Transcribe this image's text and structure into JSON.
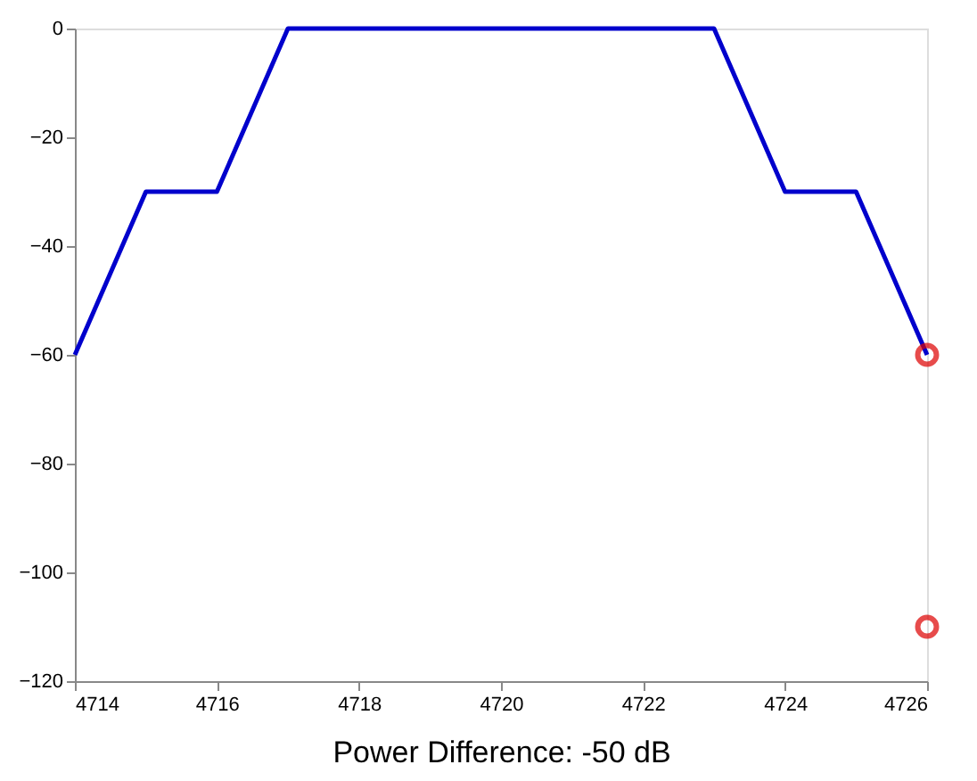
{
  "chart_data": {
    "type": "line",
    "xlabel": "Power Difference: -50 dB",
    "xlim": [
      4714,
      4726
    ],
    "xticks": [
      4714,
      4716,
      4718,
      4720,
      4722,
      4724,
      4726
    ],
    "ylim": [
      -120,
      0
    ],
    "yticks": [
      -120,
      -100,
      -80,
      -60,
      -40,
      -20,
      0
    ],
    "grid": false,
    "series": [
      {
        "type": "line",
        "color": "#0000cc",
        "marker": "none",
        "line_style": "solid",
        "x": [
          4714,
          4715,
          4716,
          4717,
          4723,
          4724,
          4725,
          4726
        ],
        "values": [
          -60,
          -30,
          -30,
          0,
          0,
          -30,
          -30,
          -60
        ]
      },
      {
        "type": "scatter",
        "color": "#dd0000",
        "marker": "circle",
        "x": [
          4726,
          4726
        ],
        "values": [
          -60,
          -110
        ]
      }
    ]
  }
}
